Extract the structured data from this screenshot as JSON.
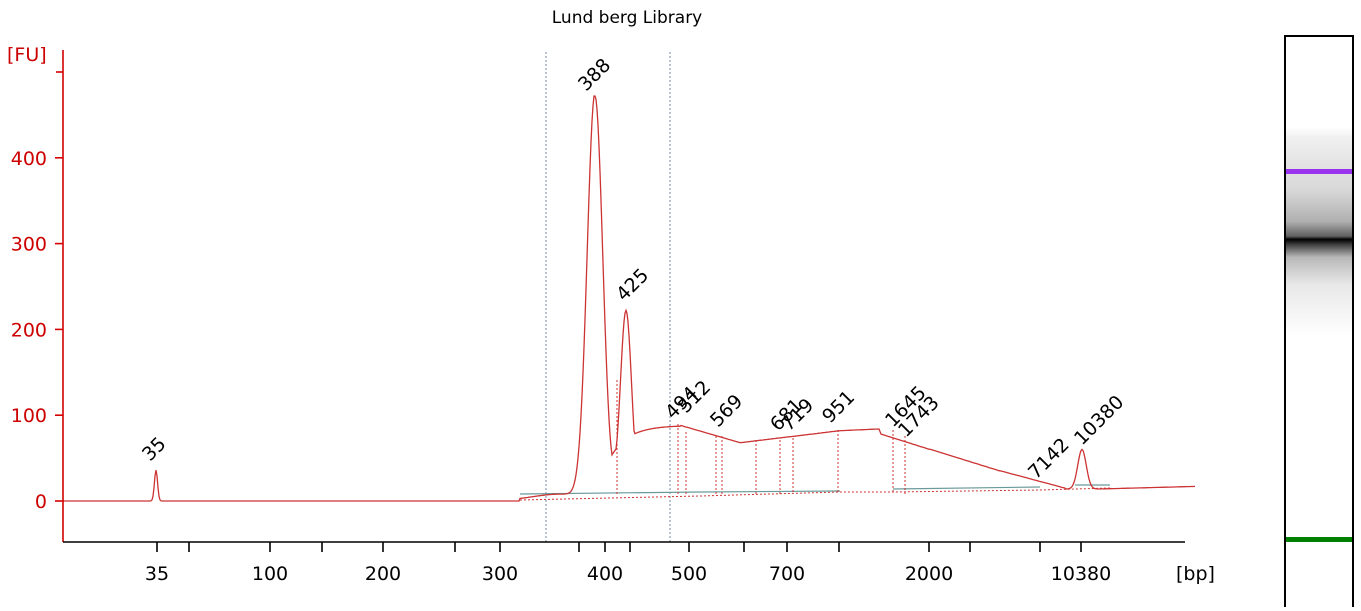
{
  "chart_data": {
    "type": "line",
    "title": "Lund berg Library",
    "ylabel": "[FU]",
    "xlabel": "[bp]",
    "ylim": [
      -45,
      520
    ],
    "y_ticks": [
      0,
      100,
      200,
      300,
      400
    ],
    "x_tick_labels": [
      "35",
      "100",
      "200",
      "300",
      "400",
      "500",
      "700",
      "2000",
      "10380"
    ],
    "peaks": [
      {
        "label": "35",
        "value": 36,
        "color": "#008000"
      },
      {
        "label": "388",
        "value": 472,
        "color": "#000000"
      },
      {
        "label": "425",
        "value": 222,
        "color": "#000000"
      },
      {
        "label": "494",
        "value": 88,
        "color": "#000000"
      },
      {
        "label": "512",
        "value": 84,
        "color": "#000000"
      },
      {
        "label": "569",
        "value": 78,
        "color": "#000000"
      },
      {
        "label": "681",
        "value": 74,
        "color": "#000000"
      },
      {
        "label": "719",
        "value": 75,
        "color": "#000000"
      },
      {
        "label": "951",
        "value": 82,
        "color": "#000000"
      },
      {
        "label": "1645",
        "value": 84,
        "color": "#000000"
      },
      {
        "label": "1743",
        "value": 80,
        "color": "#000000"
      },
      {
        "label": "7142",
        "value": 20,
        "color": "#000000"
      },
      {
        "label": "10380",
        "value": 60,
        "color": "#9933ee"
      }
    ],
    "colors": {
      "trace": "#cc3333",
      "axis_y": "#cc0000",
      "baseline": "#6a9a9a",
      "lower_marker": "#008000",
      "upper_marker": "#9933ee"
    }
  },
  "gel": {
    "upper_marker_color": "#9933ee",
    "lower_marker_color": "#008000"
  }
}
